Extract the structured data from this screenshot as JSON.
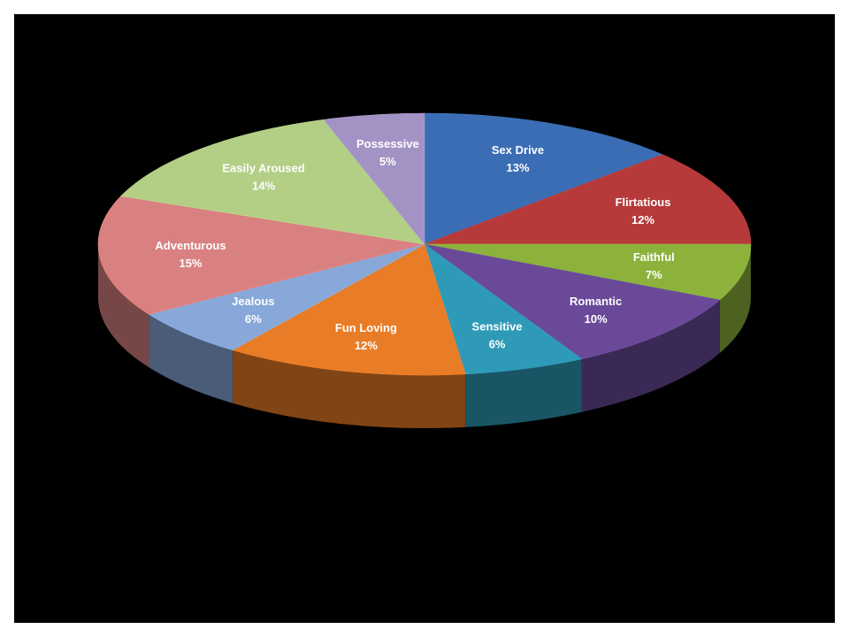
{
  "chart_data": {
    "type": "pie",
    "style": "3d-tilted",
    "slices": [
      {
        "label": "Sex Drive",
        "value": 13,
        "value_label": "13%",
        "color": "#3b6db5"
      },
      {
        "label": "Flirtatious",
        "value": 12,
        "value_label": "12%",
        "color": "#b63a3a"
      },
      {
        "label": "Faithful",
        "value": 7,
        "value_label": "7%",
        "color": "#8cb23c"
      },
      {
        "label": "Romantic",
        "value": 10,
        "value_label": "10%",
        "color": "#6a4a98"
      },
      {
        "label": "Sensitive",
        "value": 6,
        "value_label": "6%",
        "color": "#2f9ab8"
      },
      {
        "label": "Fun Loving",
        "value": 12,
        "value_label": "12%",
        "color": "#e97c26"
      },
      {
        "label": "Jealous",
        "value": 6,
        "value_label": "6%",
        "color": "#87a8d8"
      },
      {
        "label": "Adventurous",
        "value": 15,
        "value_label": "15%",
        "color": "#d98181"
      },
      {
        "label": "Easily Aroused",
        "value": 14,
        "value_label": "14%",
        "color": "#b2cf85"
      },
      {
        "label": "Possessive",
        "value": 5,
        "value_label": "5%",
        "color": "#a393c4"
      }
    ]
  }
}
